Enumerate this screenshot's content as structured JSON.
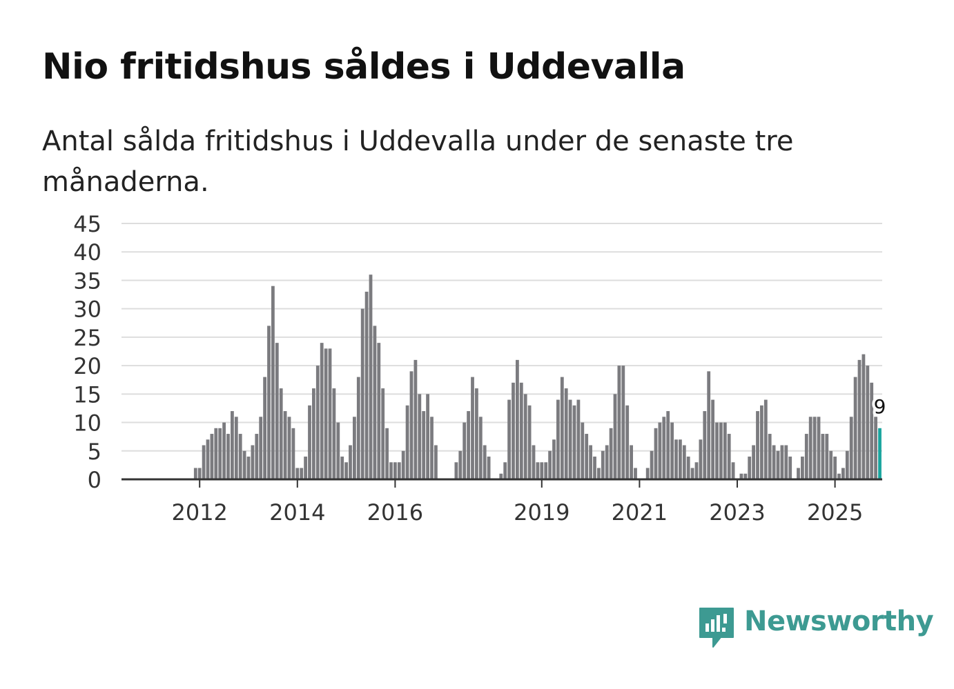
{
  "title": "Nio fritidshus såldes i Uddevalla",
  "subtitle": "Antal sålda fritidshus i Uddevalla under de senaste tre månaderna.",
  "logo": {
    "text": "Newsworthy",
    "icon": "newsworthy-bar-chart-icon"
  },
  "colors": {
    "bar": "#7b7b7f",
    "highlight": "#1aa59e",
    "grid": "#dddddd",
    "axis": "#333333",
    "brand": "#3d9a92"
  },
  "chart_data": {
    "type": "bar",
    "title": "Nio fritidshus såldes i Uddevalla",
    "xlabel": "",
    "ylabel": "",
    "ylim": [
      0,
      45
    ],
    "yticks": [
      0,
      5,
      10,
      15,
      20,
      25,
      30,
      35,
      40,
      45
    ],
    "start": "2011-03",
    "frequency": "monthly, rolling three-month total",
    "xtick_labels": [
      {
        "label": "2012",
        "index": 10
      },
      {
        "label": "2014",
        "index": 34
      },
      {
        "label": "2016",
        "index": 58
      },
      {
        "label": "2019",
        "index": 94
      },
      {
        "label": "2021",
        "index": 118
      },
      {
        "label": "2023",
        "index": 142
      },
      {
        "label": "2025",
        "index": 166
      }
    ],
    "values": [
      0,
      0,
      0,
      0,
      0,
      0,
      0,
      0,
      0,
      2,
      2,
      6,
      7,
      8,
      9,
      9,
      10,
      8,
      12,
      11,
      8,
      5,
      4,
      6,
      8,
      11,
      18,
      27,
      34,
      24,
      16,
      12,
      11,
      9,
      2,
      2,
      4,
      13,
      16,
      20,
      24,
      23,
      23,
      16,
      10,
      4,
      3,
      6,
      11,
      18,
      30,
      33,
      36,
      27,
      24,
      16,
      9,
      3,
      3,
      3,
      5,
      13,
      19,
      21,
      15,
      12,
      15,
      11,
      6,
      0,
      0,
      0,
      0,
      3,
      5,
      10,
      12,
      18,
      16,
      11,
      6,
      4,
      0,
      0,
      1,
      3,
      14,
      17,
      21,
      17,
      15,
      13,
      6,
      3,
      3,
      3,
      5,
      7,
      14,
      18,
      16,
      14,
      13,
      14,
      10,
      8,
      6,
      4,
      2,
      5,
      6,
      9,
      15,
      20,
      20,
      13,
      6,
      2,
      0,
      0,
      2,
      5,
      9,
      10,
      11,
      12,
      10,
      7,
      7,
      6,
      4,
      2,
      3,
      7,
      12,
      19,
      14,
      10,
      10,
      10,
      8,
      3,
      0,
      1,
      1,
      4,
      6,
      12,
      13,
      14,
      8,
      6,
      5,
      6,
      6,
      4,
      0,
      2,
      4,
      8,
      11,
      11,
      11,
      8,
      8,
      5,
      4,
      1,
      2,
      5,
      11,
      18,
      21,
      22,
      20,
      17,
      11,
      9
    ],
    "highlight_index": 177,
    "callout": {
      "label": "9",
      "index": 177
    }
  }
}
